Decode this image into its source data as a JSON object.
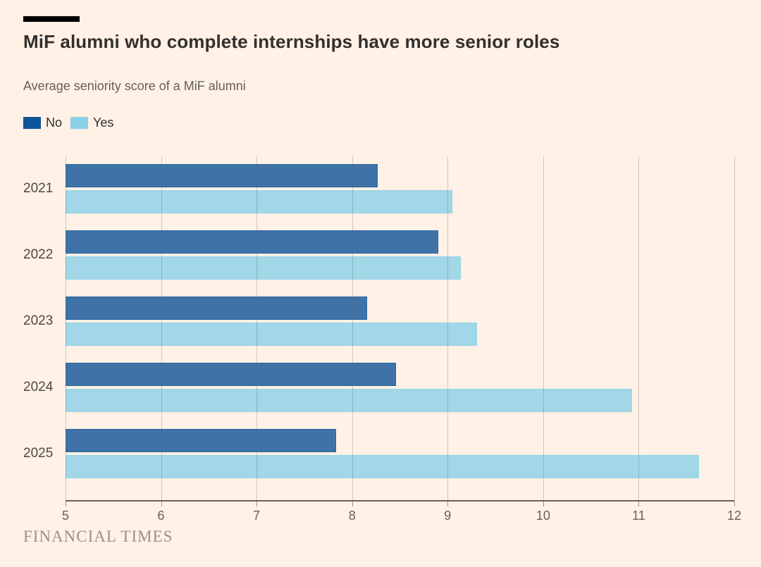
{
  "header": {
    "title": "MiF alumni who complete internships have more senior roles",
    "subtitle": "Average seniority score of a MiF alumni"
  },
  "chart_data": {
    "type": "bar",
    "orientation": "horizontal",
    "title": "MiF alumni who complete internships have more senior roles",
    "subtitle": "Average seniority score of a MiF alumni",
    "categories": [
      "2021",
      "2022",
      "2023",
      "2024",
      "2025"
    ],
    "series": [
      {
        "name": "No",
        "color": "#0F5499",
        "values": [
          8.27,
          8.9,
          8.16,
          8.46,
          7.83
        ]
      },
      {
        "name": "Yes",
        "color": "#8AD1E7",
        "values": [
          9.05,
          9.14,
          9.31,
          10.93,
          11.63
        ]
      }
    ],
    "xlim": [
      5,
      12
    ],
    "xticks": [
      5,
      6,
      7,
      8,
      9,
      10,
      11,
      12
    ],
    "grid": "vertical",
    "legend_position": "top-left"
  },
  "footer": {
    "brand": "FINANCIAL TIMES"
  },
  "colors": {
    "background": "#FFF1E5",
    "accent_bar": "#000000",
    "title_text": "#33302E",
    "subtitle_text": "#66605C",
    "axis_line": "#66605C",
    "gridline": "rgba(102,96,92,0.30)",
    "series_no": "#0F5499",
    "series_yes": "#8AD1E7"
  }
}
